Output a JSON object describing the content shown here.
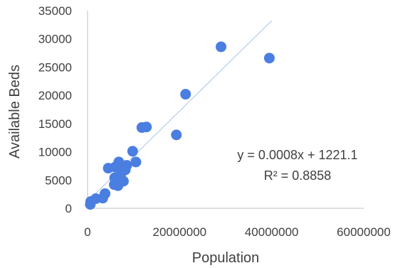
{
  "chart_data": {
    "type": "scatter",
    "title": "",
    "xlabel": "Population",
    "ylabel": "Available Beds",
    "xlim": [
      0,
      60000000
    ],
    "ylim": [
      0,
      35000
    ],
    "x_ticks": [
      0,
      20000000,
      40000000,
      60000000
    ],
    "x_tick_labels": [
      "0",
      "20000000",
      "40000000",
      "60000000"
    ],
    "y_ticks": [
      0,
      5000,
      10000,
      15000,
      20000,
      25000,
      30000,
      35000
    ],
    "y_tick_labels": [
      "0",
      "5000",
      "10000",
      "15000",
      "20000",
      "25000",
      "30000",
      "35000"
    ],
    "grid": false,
    "points": [
      {
        "x": 600000,
        "y": 700.0
      },
      {
        "x": 700000,
        "y": 1200
      },
      {
        "x": 1800000,
        "y": 1700
      },
      {
        "x": 3300000,
        "y": 1800
      },
      {
        "x": 3800000,
        "y": 2600
      },
      {
        "x": 4500000,
        "y": 7100
      },
      {
        "x": 5800000,
        "y": 4200
      },
      {
        "x": 5900000,
        "y": 5400
      },
      {
        "x": 6000000,
        "y": 7300
      },
      {
        "x": 6300000,
        "y": 5000
      },
      {
        "x": 6600000,
        "y": 4000
      },
      {
        "x": 6800000,
        "y": 8200
      },
      {
        "x": 7000000,
        "y": 7800
      },
      {
        "x": 7300000,
        "y": 6200
      },
      {
        "x": 7800000,
        "y": 4800
      },
      {
        "x": 8200000,
        "y": 6800
      },
      {
        "x": 8500000,
        "y": 7600
      },
      {
        "x": 9800000,
        "y": 10100
      },
      {
        "x": 10500000,
        "y": 8200
      },
      {
        "x": 11800000,
        "y": 14300
      },
      {
        "x": 12800000,
        "y": 14400
      },
      {
        "x": 19300000,
        "y": 13000
      },
      {
        "x": 21300000,
        "y": 20200
      },
      {
        "x": 29000000,
        "y": 28600
      },
      {
        "x": 39500000,
        "y": 26600
      }
    ],
    "trendline": {
      "slope": 0.0008,
      "intercept": 1221.1,
      "x_range": [
        0,
        40000000
      ]
    },
    "annotations": [
      "y = 0.0008x + 1221.1",
      "R² = 0.8858"
    ]
  }
}
